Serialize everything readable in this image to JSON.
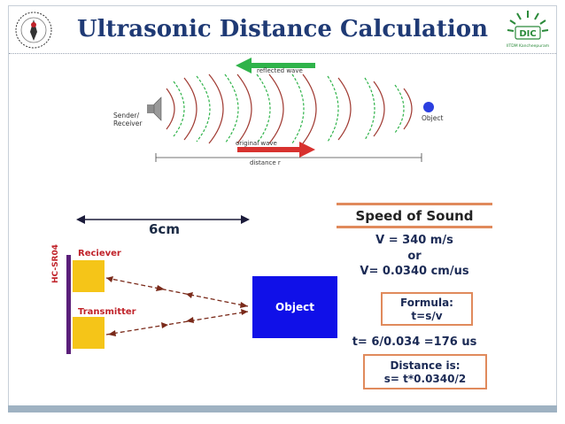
{
  "slide": {
    "title": "Ultrasonic Distance Calculation"
  },
  "top_diagram": {
    "sender_label": "Sender/\nReceiver",
    "sender_line1": "Sender/",
    "sender_line2": "Receiver",
    "reflected_label": "reflected wave",
    "object_label": "Object",
    "original_label": "original wave",
    "distance_label": "distance r"
  },
  "bottom_diagram": {
    "distance_label": "6cm",
    "receiver_label": "Reciever",
    "transmitter_label": "Transmitter",
    "sensor_label": "HC-SR04",
    "object_label": "Object"
  },
  "formulas": {
    "heading": "Speed of Sound",
    "line1": "V = 340 m/s",
    "line2": "or",
    "line3": "V= 0.0340 cm/us",
    "formula_title": "Formula:",
    "formula": "t=s/v",
    "time_calc": "t= 6/0.034 =176 us",
    "distance_title": "Distance is:",
    "distance_formula": "s= t*0.0340/2"
  },
  "logo_right": {
    "text": "DIC",
    "subtext": "IITDM Kancheepuram"
  },
  "colors": {
    "title": "#1f3a75",
    "reflected_arrow": "#2fb34a",
    "original_arrow": "#d8322f",
    "object_box": "#1010e8",
    "accent_border": "#e08a5c",
    "sensor_yellow": "#f5c518",
    "sensor_bar": "#5a1f7a"
  }
}
